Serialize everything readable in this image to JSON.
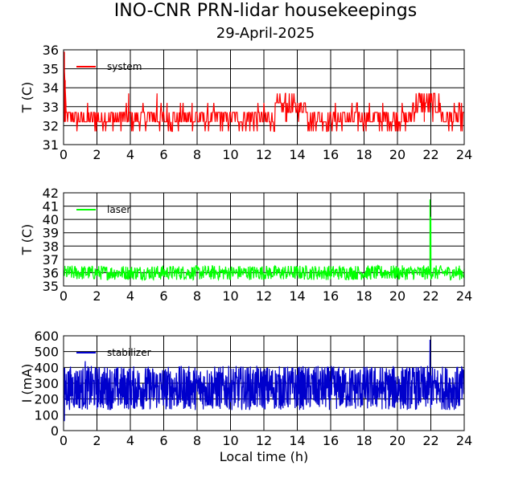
{
  "title": "INO-CNR PRN-lidar housekeepings",
  "subtitle": "29-April-2025",
  "colors": {
    "system": "#ff0000",
    "laser": "#00ff00",
    "stabilizer": "#0000cc",
    "grid": "#000000"
  },
  "chart_data": [
    {
      "type": "line",
      "ylabel": "T (C)",
      "xlabel": "",
      "xlim": [
        0,
        24
      ],
      "ylim": [
        31,
        36
      ],
      "xticks": [
        "0",
        "2",
        "4",
        "6",
        "8",
        "10",
        "12",
        "14",
        "16",
        "18",
        "20",
        "22",
        "24"
      ],
      "yticks": [
        "31",
        "32",
        "33",
        "34",
        "35",
        "36"
      ],
      "grid": true,
      "legend_position": "top-left",
      "series": [
        {
          "name": "system",
          "color": "#ff0000",
          "noise": {
            "base": 32.2,
            "amp": 0.6,
            "step": 0.5,
            "min": 31.7,
            "max": 33.2,
            "density": 600
          },
          "segments": [
            {
              "x": [
                0,
                0.15
              ],
              "y": [
                35.9,
                33.0
              ]
            },
            {
              "x": [
                12.7,
                14.6
              ],
              "level": 32.8,
              "amp": 0.6
            },
            {
              "x": [
                20.9,
                22.6
              ],
              "level": 32.9,
              "amp": 0.7
            }
          ],
          "spikes": [
            {
              "x": 0.05,
              "y": 35.9
            },
            {
              "x": 0.1,
              "y": 34.4
            },
            {
              "x": 3.9,
              "y": 33.7
            },
            {
              "x": 5.6,
              "y": 33.7
            },
            {
              "x": 6.2,
              "y": 33.2
            },
            {
              "x": 7.7,
              "y": 33.2
            },
            {
              "x": 13.3,
              "y": 33.7
            },
            {
              "x": 21.6,
              "y": 33.7
            }
          ]
        }
      ]
    },
    {
      "type": "line",
      "ylabel": "T (C)",
      "xlabel": "",
      "xlim": [
        0,
        24
      ],
      "ylim": [
        35,
        42
      ],
      "xticks": [
        "0",
        "2",
        "4",
        "6",
        "8",
        "10",
        "12",
        "14",
        "16",
        "18",
        "20",
        "22",
        "24"
      ],
      "yticks": [
        "35",
        "36",
        "37",
        "38",
        "39",
        "40",
        "41",
        "42"
      ],
      "grid": true,
      "legend_position": "top-left",
      "series": [
        {
          "name": "laser",
          "color": "#00ff00",
          "noise": {
            "base": 36.0,
            "amp": 0.55,
            "step": 0,
            "min": 35.4,
            "max": 36.7,
            "density": 900
          },
          "segments": [],
          "spikes": [
            {
              "x": 21.95,
              "y": 41.5
            },
            {
              "x": 22.0,
              "y": 40.2
            }
          ]
        }
      ]
    },
    {
      "type": "line",
      "ylabel": "I (mA)",
      "xlabel": "Local time (h)",
      "xlim": [
        0,
        24
      ],
      "ylim": [
        0,
        600
      ],
      "xticks": [
        "0",
        "2",
        "4",
        "6",
        "8",
        "10",
        "12",
        "14",
        "16",
        "18",
        "20",
        "22",
        "24"
      ],
      "yticks": [
        "0",
        "100",
        "200",
        "300",
        "400",
        "500",
        "600"
      ],
      "grid": true,
      "legend_position": "top-left",
      "series": [
        {
          "name": "stabilizer",
          "color": "#0000cc",
          "noise": {
            "base": 270,
            "amp": 140,
            "step": 0,
            "min": 120,
            "max": 410,
            "density": 1400
          },
          "segments": [],
          "spikes": [
            {
              "x": 21.95,
              "y": 575
            },
            {
              "x": 1.3,
              "y": 440
            },
            {
              "x": 0.05,
              "y": 60
            }
          ]
        }
      ]
    }
  ]
}
